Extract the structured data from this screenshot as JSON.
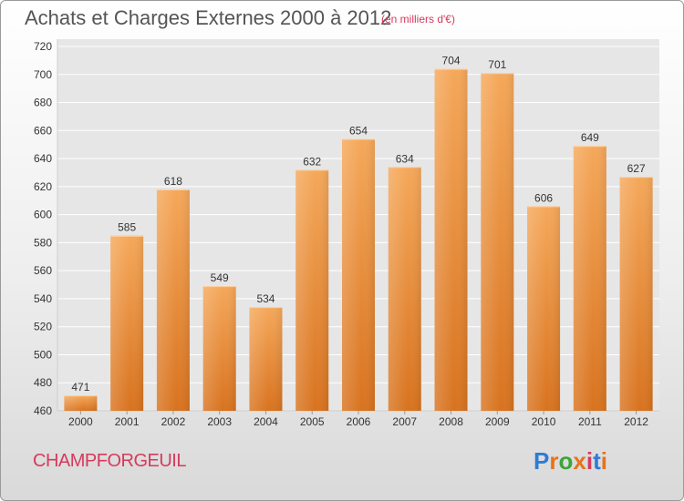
{
  "title": "Achats et Charges Externes 2000 à 2012",
  "unit_note": "(en milliers d'€)",
  "commune": "CHAMPFORGEUIL",
  "logo": {
    "text": "Proxiti",
    "colors": [
      "#2e7bd6",
      "#e8731a",
      "#3aa53a",
      "#e8731a",
      "#d63a5c",
      "#2e7bd6",
      "#e8731a"
    ]
  },
  "colors": {
    "bar_light": "#f5a85a",
    "bar_dark": "#d8731f",
    "grid": "#ffffff",
    "axis_text": "#333333"
  },
  "chart_data": {
    "type": "bar",
    "categories": [
      "2000",
      "2001",
      "2002",
      "2003",
      "2004",
      "2005",
      "2006",
      "2007",
      "2008",
      "2009",
      "2010",
      "2011",
      "2012"
    ],
    "values": [
      471,
      585,
      618,
      549,
      534,
      632,
      654,
      634,
      704,
      701,
      606,
      649,
      627
    ],
    "ylim": [
      460,
      720
    ],
    "yticks": [
      460,
      480,
      500,
      520,
      540,
      560,
      580,
      600,
      620,
      640,
      660,
      680,
      700,
      720
    ],
    "grid": true,
    "data_labels": true
  }
}
